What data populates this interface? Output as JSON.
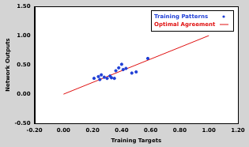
{
  "chart_data": {
    "type": "scatter",
    "x_label": "Training Targets",
    "y_label": "Network Outputs",
    "xlim": [
      -0.2,
      1.2
    ],
    "ylim": [
      -0.5,
      1.5
    ],
    "xticks": [
      {
        "value": -0.2,
        "label": "-0.20"
      },
      {
        "value": 0,
        "label": "0.00"
      },
      {
        "value": 0.2,
        "label": "0.20"
      },
      {
        "value": 0.4,
        "label": "0.40"
      },
      {
        "value": 0.6,
        "label": "0.60"
      },
      {
        "value": 0.8,
        "label": "0.80"
      },
      {
        "value": 1,
        "label": "1.00"
      },
      {
        "value": 1.2,
        "label": "1.20"
      }
    ],
    "yticks": [
      {
        "value": -0.5,
        "label": "-0.50"
      },
      {
        "value": 0,
        "label": "0.00"
      },
      {
        "value": 0.5,
        "label": "0.50"
      },
      {
        "value": 1,
        "label": "1.00"
      },
      {
        "value": 1.5,
        "label": "1.50"
      }
    ],
    "grid": false,
    "legend": "upper right",
    "series": [
      {
        "name": "Training Patterns",
        "type": "scatter",
        "color": "#1f3fd6",
        "marker": "circle",
        "x": [
          0.21,
          0.24,
          0.25,
          0.26,
          0.28,
          0.3,
          0.32,
          0.33,
          0.35,
          0.36,
          0.38,
          0.4,
          0.41,
          0.43,
          0.47,
          0.5,
          0.58
        ],
        "values": [
          0.27,
          0.3,
          0.25,
          0.33,
          0.29,
          0.27,
          0.31,
          0.28,
          0.27,
          0.4,
          0.45,
          0.51,
          0.42,
          0.44,
          0.36,
          0.38,
          0.61
        ]
      },
      {
        "name": "Optimal Agreement",
        "type": "line",
        "color": "#e01010",
        "line_style": "solid",
        "x": [
          0,
          1
        ],
        "values": [
          0,
          1
        ]
      }
    ]
  }
}
